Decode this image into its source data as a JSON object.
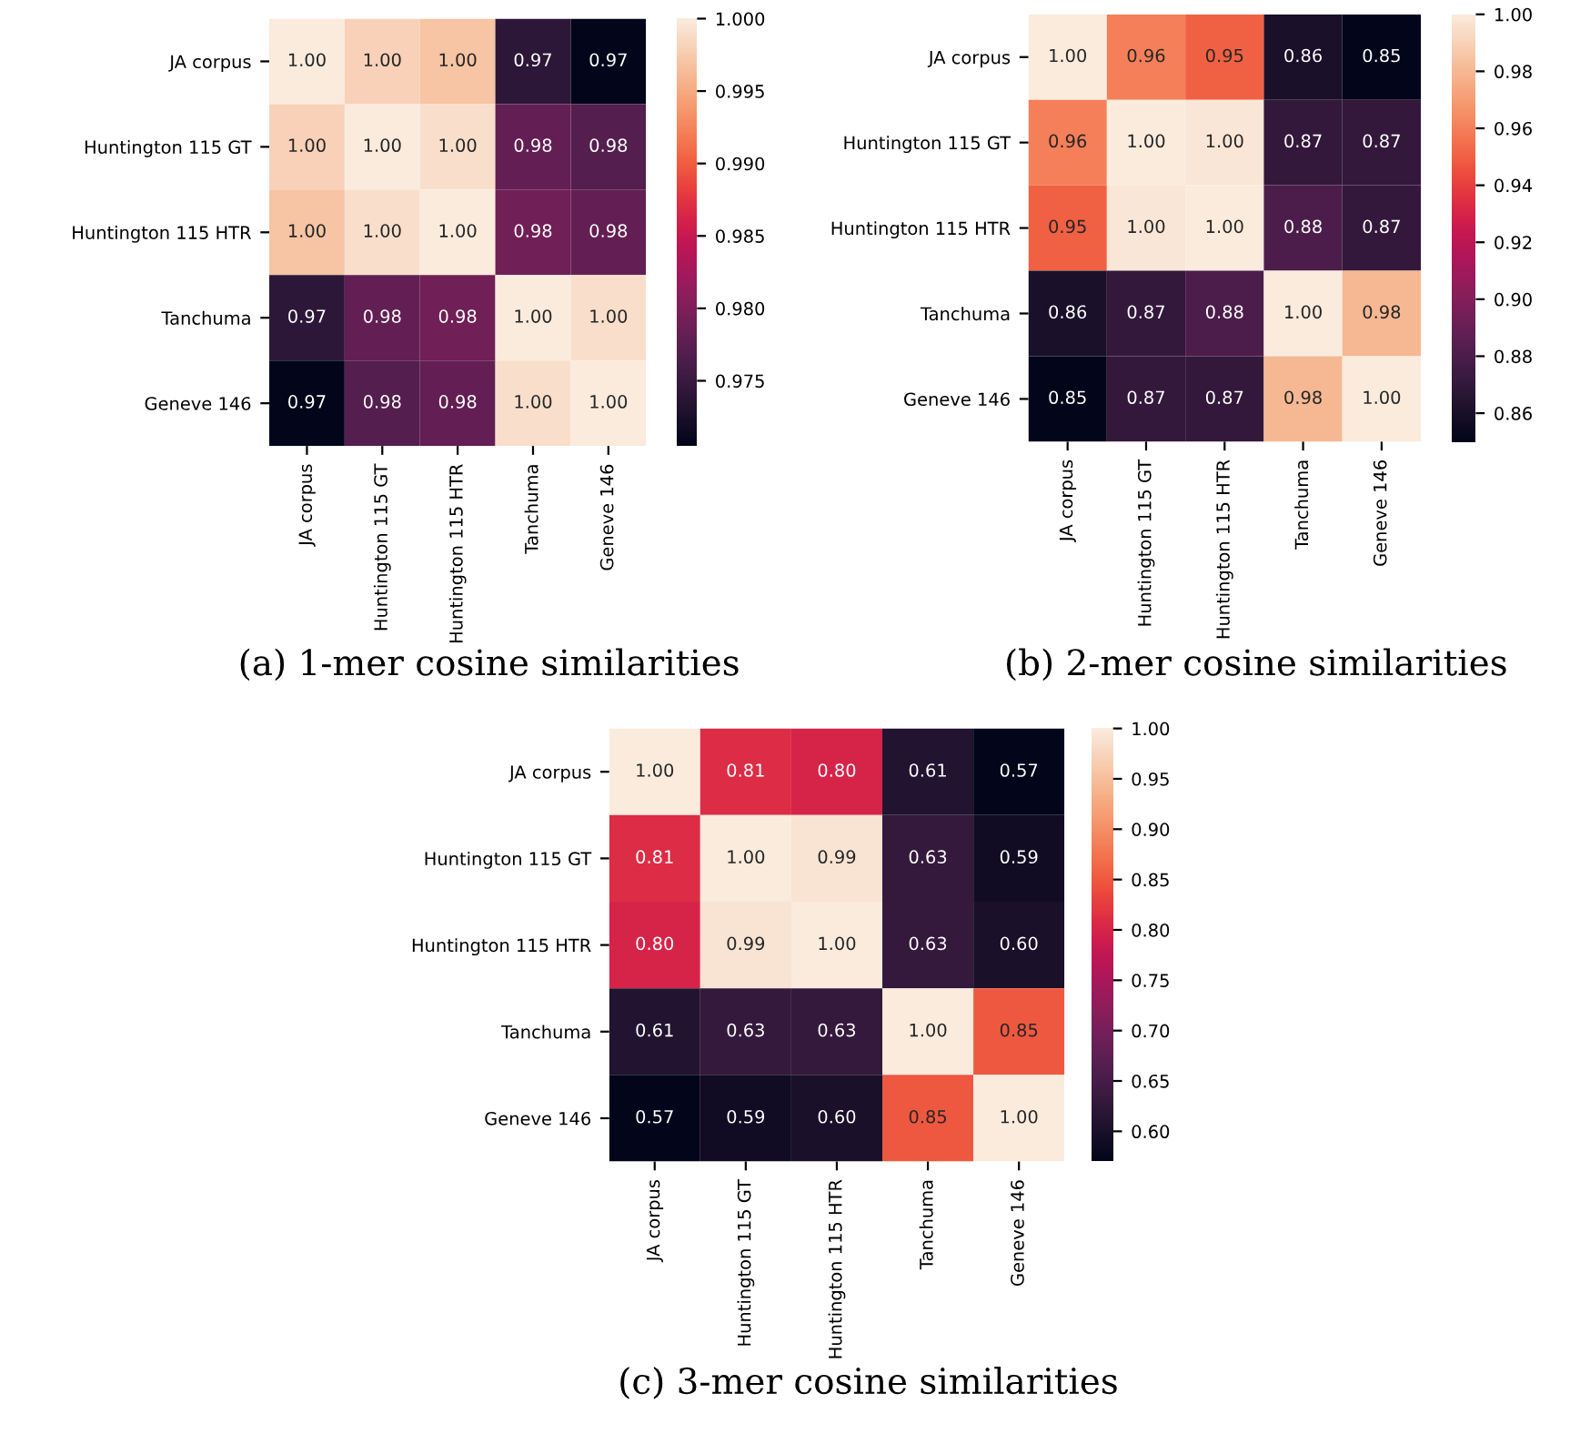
{
  "chart_data": [
    {
      "type": "heatmap",
      "title": "(a) 1-mer cosine similarities",
      "categories": [
        "JA corpus",
        "Huntington 115 GT",
        "Huntington 115 HTR",
        "Tanchuma",
        "Geneve 146"
      ],
      "y_categories": [
        "JA corpus",
        "Huntington 115 GT",
        "Huntington 115 HTR",
        "Tanchuma",
        "Geneve 146"
      ],
      "cells": [
        [
          1.0,
          0.998,
          0.997,
          0.974,
          0.9705
        ],
        [
          0.998,
          1.0,
          0.999,
          0.978,
          0.977
        ],
        [
          0.997,
          0.999,
          1.0,
          0.979,
          0.978
        ],
        [
          0.974,
          0.978,
          0.979,
          1.0,
          0.999
        ],
        [
          0.9705,
          0.977,
          0.978,
          0.999,
          1.0
        ]
      ],
      "cell_labels": [
        [
          "1.00",
          "1.00",
          "1.00",
          "0.97",
          "0.97"
        ],
        [
          "1.00",
          "1.00",
          "1.00",
          "0.98",
          "0.98"
        ],
        [
          "1.00",
          "1.00",
          "1.00",
          "0.98",
          "0.98"
        ],
        [
          "0.97",
          "0.98",
          "0.98",
          "1.00",
          "1.00"
        ],
        [
          "0.97",
          "0.98",
          "0.98",
          "1.00",
          "1.00"
        ]
      ],
      "clim": [
        0.9705,
        1.0
      ],
      "cticks": [
        {
          "value": 0.975,
          "label": "0.975"
        },
        {
          "value": 0.98,
          "label": "0.980"
        },
        {
          "value": 0.985,
          "label": "0.985"
        },
        {
          "value": 0.99,
          "label": "0.990"
        },
        {
          "value": 0.995,
          "label": "0.995"
        },
        {
          "value": 1.0,
          "label": "1.000"
        }
      ]
    },
    {
      "type": "heatmap",
      "title": "(b) 2-mer cosine similarities",
      "categories": [
        "JA corpus",
        "Huntington 115 GT",
        "Huntington 115 HTR",
        "Tanchuma",
        "Geneve 146"
      ],
      "y_categories": [
        "JA corpus",
        "Huntington 115 GT",
        "Huntington 115 HTR",
        "Tanchuma",
        "Geneve 146"
      ],
      "cells": [
        [
          1.0,
          0.96,
          0.95,
          0.86,
          0.85
        ],
        [
          0.96,
          1.0,
          0.998,
          0.87,
          0.87
        ],
        [
          0.95,
          0.998,
          1.0,
          0.88,
          0.87
        ],
        [
          0.86,
          0.87,
          0.88,
          1.0,
          0.98
        ],
        [
          0.85,
          0.87,
          0.87,
          0.98,
          1.0
        ]
      ],
      "cell_labels": [
        [
          "1.00",
          "0.96",
          "0.95",
          "0.86",
          "0.85"
        ],
        [
          "0.96",
          "1.00",
          "1.00",
          "0.87",
          "0.87"
        ],
        [
          "0.95",
          "1.00",
          "1.00",
          "0.88",
          "0.87"
        ],
        [
          "0.86",
          "0.87",
          "0.88",
          "1.00",
          "0.98"
        ],
        [
          "0.85",
          "0.87",
          "0.87",
          "0.98",
          "1.00"
        ]
      ],
      "clim": [
        0.85,
        1.0
      ],
      "cticks": [
        {
          "value": 0.86,
          "label": "0.86"
        },
        {
          "value": 0.88,
          "label": "0.88"
        },
        {
          "value": 0.9,
          "label": "0.90"
        },
        {
          "value": 0.92,
          "label": "0.92"
        },
        {
          "value": 0.94,
          "label": "0.94"
        },
        {
          "value": 0.96,
          "label": "0.96"
        },
        {
          "value": 0.98,
          "label": "0.98"
        },
        {
          "value": 1.0,
          "label": "1.00"
        }
      ]
    },
    {
      "type": "heatmap",
      "title": "(c) 3-mer cosine similarities",
      "categories": [
        "JA corpus",
        "Huntington 115 GT",
        "Huntington 115 HTR",
        "Tanchuma",
        "Geneve 146"
      ],
      "y_categories": [
        "JA corpus",
        "Huntington 115 GT",
        "Huntington 115 HTR",
        "Tanchuma",
        "Geneve 146"
      ],
      "cells": [
        [
          1.0,
          0.81,
          0.8,
          0.61,
          0.57
        ],
        [
          0.81,
          1.0,
          0.99,
          0.63,
          0.59
        ],
        [
          0.8,
          0.99,
          1.0,
          0.63,
          0.6
        ],
        [
          0.61,
          0.63,
          0.63,
          1.0,
          0.85
        ],
        [
          0.57,
          0.59,
          0.6,
          0.85,
          1.0
        ]
      ],
      "cell_labels": [
        [
          "1.00",
          "0.81",
          "0.80",
          "0.61",
          "0.57"
        ],
        [
          "0.81",
          "1.00",
          "0.99",
          "0.63",
          "0.59"
        ],
        [
          "0.80",
          "0.99",
          "1.00",
          "0.63",
          "0.60"
        ],
        [
          "0.61",
          "0.63",
          "0.63",
          "1.00",
          "0.85"
        ],
        [
          "0.57",
          "0.59",
          "0.60",
          "0.85",
          "1.00"
        ]
      ],
      "clim": [
        0.57,
        1.0
      ],
      "cticks": [
        {
          "value": 0.6,
          "label": "0.60"
        },
        {
          "value": 0.65,
          "label": "0.65"
        },
        {
          "value": 0.7,
          "label": "0.70"
        },
        {
          "value": 0.75,
          "label": "0.75"
        },
        {
          "value": 0.8,
          "label": "0.80"
        },
        {
          "value": 0.85,
          "label": "0.85"
        },
        {
          "value": 0.9,
          "label": "0.90"
        },
        {
          "value": 0.95,
          "label": "0.95"
        },
        {
          "value": 1.0,
          "label": "1.00"
        }
      ]
    }
  ]
}
